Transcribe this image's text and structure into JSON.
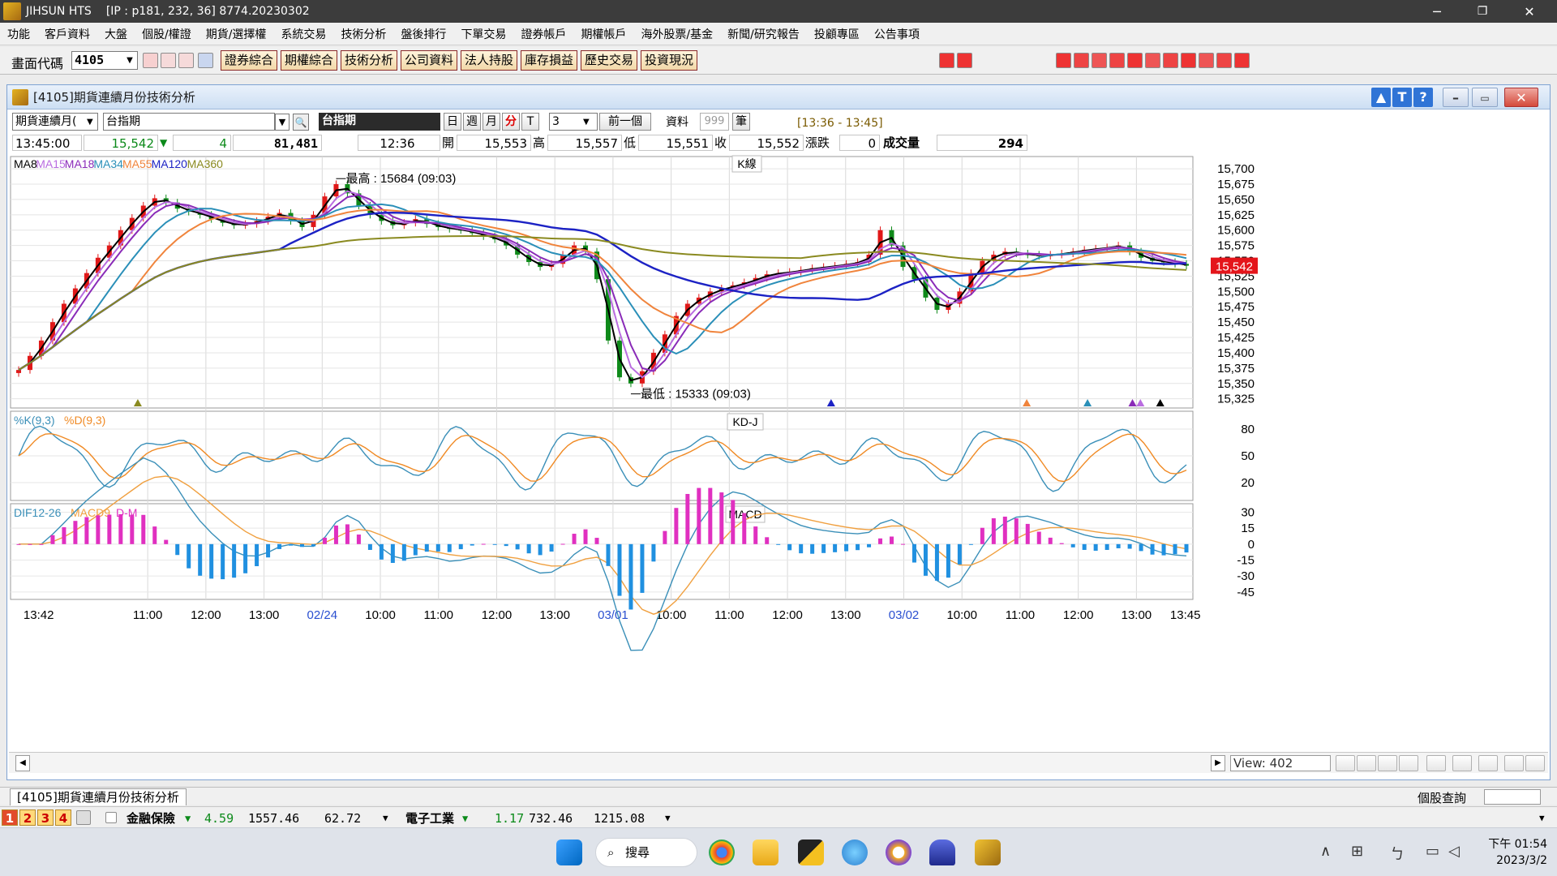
{
  "titlebar": {
    "app_name": "JIHSUN HTS",
    "ip_info": "[IP : p181, 232, 36] 8774.20230302",
    "minimize": "─",
    "restore": "❐",
    "close": "✕"
  },
  "menu": [
    "功能",
    "客戶資料",
    "大盤",
    "個股/權證",
    "期貨/選擇權",
    "系統交易",
    "技術分析",
    "盤後排行",
    "下單交易",
    "證券帳戶",
    "期權帳戶",
    "海外股票/基金",
    "新聞/研究報告",
    "投顧專區",
    "公告事項"
  ],
  "toolbar": {
    "code_label": "畫面代碼",
    "code_value": "4105",
    "function_buttons": [
      "證券綜合",
      "期權綜合",
      "技術分析",
      "公司資料",
      "法人持股",
      "庫存損益",
      "歷史交易",
      "投資現況"
    ]
  },
  "window": {
    "title": "[4105]期貨連續月份技術分析"
  },
  "controls": {
    "product_select": "期貨連續月(",
    "symbol": "台指期",
    "symbol_display": "台指期",
    "period_day": "日",
    "period_week": "週",
    "period_month": "月",
    "period_minute": "分",
    "period_tick": "T",
    "interval_value": "3",
    "prev_button": "前一個",
    "data_label": "資料",
    "data_count": "999",
    "data_unit": "筆",
    "time_range": "[13:36 - 13:45]"
  },
  "quote": {
    "time": "13:45:00",
    "price": "15,542",
    "change": "4",
    "volume_total": "81,481",
    "bar_time": "12:36",
    "open_label": "開",
    "open": "15,553",
    "high_label": "高",
    "high": "15,557",
    "low_label": "低",
    "low": "15,551",
    "close_label": "收",
    "close": "15,552",
    "change_label": "漲跌",
    "change_value": "0",
    "volume_label": "成交量",
    "volume": "294"
  },
  "chart_data": {
    "type": "line",
    "panels": [
      {
        "name": "K線",
        "legend": [
          "MA8",
          "MA15",
          "MA18",
          "MA34",
          "MA55",
          "MA120",
          "MA360"
        ],
        "y_ticks": [
          15325,
          15350,
          15375,
          15400,
          15425,
          15450,
          15475,
          15500,
          15525,
          15550,
          15575,
          15600,
          15625,
          15650,
          15675,
          15700
        ],
        "ylim": [
          15310,
          15720
        ],
        "last_price": "15,542",
        "annotations": [
          "最高 : 15684 (09:03)",
          "最低 : 15333 (09:03)"
        ],
        "close_series": [
          15372,
          15395,
          15420,
          15450,
          15480,
          15505,
          15530,
          15555,
          15575,
          15600,
          15620,
          15640,
          15652,
          15645,
          15635,
          15630,
          15625,
          15618,
          15612,
          15608,
          15610,
          15615,
          15622,
          15628,
          15615,
          15605,
          15625,
          15655,
          15675,
          15660,
          15640,
          15625,
          15615,
          15608,
          15612,
          15618,
          15610,
          15605,
          15602,
          15600,
          15595,
          15590,
          15585,
          15575,
          15560,
          15548,
          15540,
          15545,
          15560,
          15575,
          15565,
          15520,
          15420,
          15360,
          15350,
          15370,
          15400,
          15430,
          15460,
          15480,
          15490,
          15500,
          15505,
          15510,
          15515,
          15522,
          15528,
          15530,
          15532,
          15535,
          15538,
          15540,
          15542,
          15545,
          15548,
          15560,
          15600,
          15575,
          15540,
          15520,
          15490,
          15470,
          15480,
          15500,
          15530,
          15550,
          15560,
          15565,
          15562,
          15560,
          15558,
          15560,
          15562,
          15565,
          15568,
          15570,
          15572,
          15575,
          15565,
          15555,
          15550,
          15548,
          15545,
          15542
        ]
      },
      {
        "name": "KD-J",
        "legend": [
          "%K(9,3)",
          "%D(9,3)"
        ],
        "y_ticks": [
          20,
          50,
          80
        ]
      },
      {
        "name": "MACD",
        "legend": [
          "DIF12-26",
          "MACD9",
          "D-M"
        ],
        "y_ticks": [
          30,
          15,
          0,
          -15,
          -30,
          -45
        ]
      }
    ],
    "x_tick_labels": [
      "13:42",
      "11:00",
      "12:00",
      "13:00",
      "02/24",
      "10:00",
      "11:00",
      "12:00",
      "13:00",
      "03/01",
      "10:00",
      "11:00",
      "12:00",
      "13:00",
      "03/02",
      "10:00",
      "11:00",
      "12:00",
      "13:00",
      "13:45"
    ],
    "colors": {
      "MA8": "#000000",
      "MA15": "#b96ce0",
      "MA18": "#8a2bb8",
      "MA34": "#2a8fb8",
      "MA55": "#f0843c",
      "MA120": "#1c22c4",
      "MA360": "#8a8a20",
      "up": "#e01818",
      "down": "#0f8a1a",
      "K": "#3a8fb8",
      "D": "#f08a24",
      "DIF": "#3a8fb8",
      "MACD9": "#f0a040",
      "hist_pos": "#e030c0",
      "hist_neg": "#2090e0"
    }
  },
  "scroll": {
    "view_label": "View:",
    "view_value": "402"
  },
  "tabbar": {
    "tab_label": "[4105]期貨連續月份技術分析",
    "quick_label": "個股查詢"
  },
  "ticker": {
    "tabs": [
      "1",
      "2",
      "3",
      "4"
    ],
    "item1_name": "金融保險",
    "item1_change": "4.59",
    "item1_price": "1557.46",
    "item1_volume": "62.72",
    "item2_name": "電子工業",
    "item2_change": "1.17",
    "item2_price": "732.46",
    "item2_volume": "1215.08"
  },
  "taskbar": {
    "search_label": "搜尋",
    "time_ampm": "下午 01:54",
    "date": "2023/3/2"
  }
}
